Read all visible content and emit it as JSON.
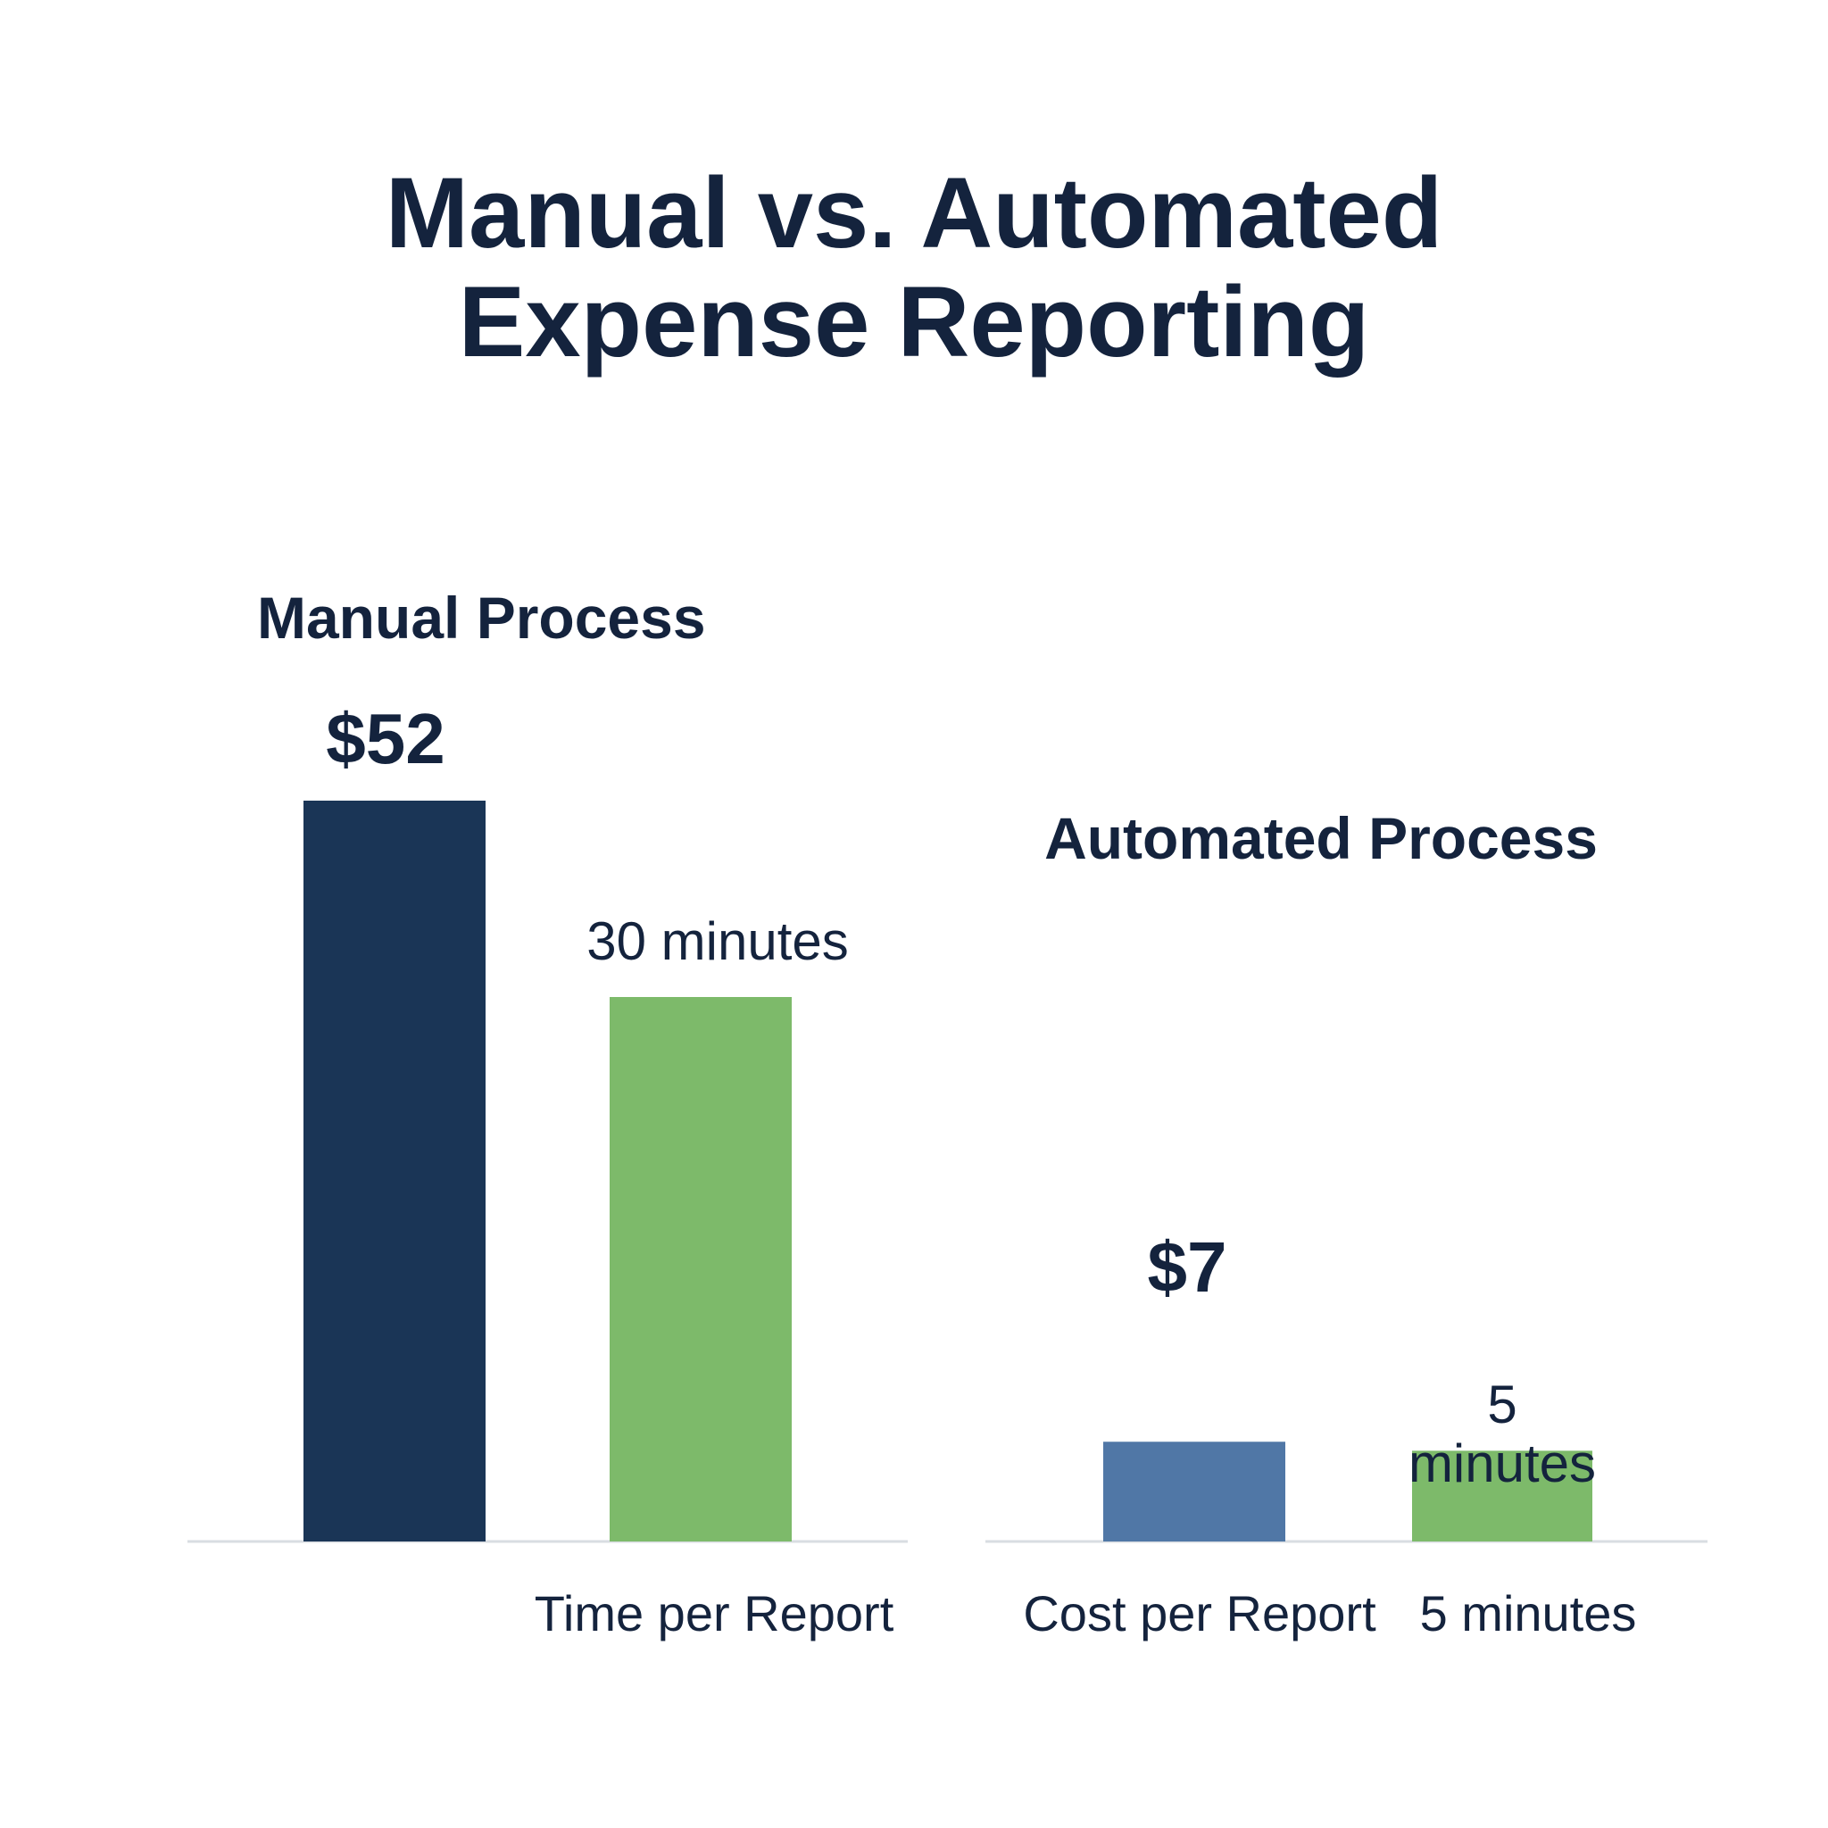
{
  "title": [
    "Manual vs. Automated",
    "Expense Reporting"
  ],
  "colors": {
    "text": "#14233d",
    "manual_cost": "#1a3556",
    "automated_cost": "#5077a6",
    "time": "#7dba6a",
    "baseline": "#d9dde2"
  },
  "chart_data": [
    {
      "type": "bar",
      "group_label": "Manual Process",
      "category_labels": [
        "",
        "Time per Report"
      ],
      "bars": [
        {
          "metric": "cost",
          "value": 52,
          "value_label": "$52"
        },
        {
          "metric": "time",
          "value": 30,
          "value_label": "30 minutes"
        }
      ]
    },
    {
      "type": "bar",
      "group_label": "Automated Process",
      "category_labels": [
        "Cost per Report",
        "5 minutes"
      ],
      "bars": [
        {
          "metric": "cost",
          "value": 7,
          "value_label": "$7"
        },
        {
          "metric": "time",
          "value": 5,
          "value_label": "5 minutes"
        }
      ]
    }
  ]
}
